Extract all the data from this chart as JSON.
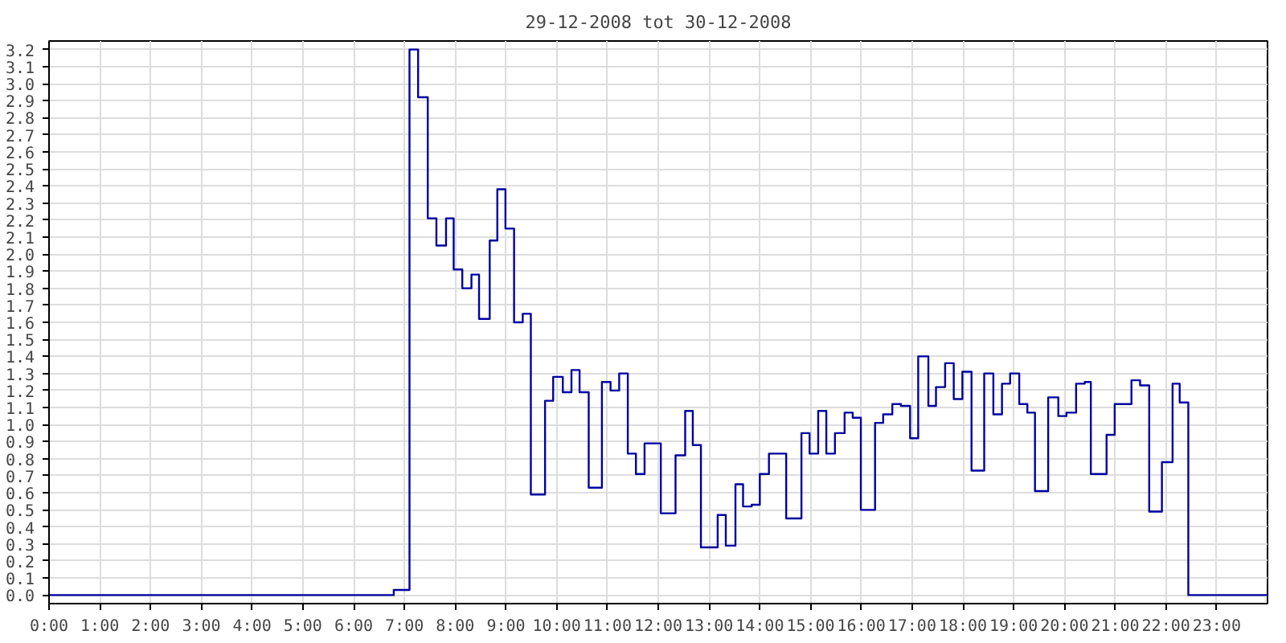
{
  "chart_data": {
    "type": "step",
    "title": "29-12-2008 tot 30-12-2008",
    "x": [
      0,
      6.79,
      7.1,
      7.27,
      7.46,
      7.63,
      7.82,
      7.97,
      8.14,
      8.32,
      8.47,
      8.68,
      8.83,
      8.99,
      9.16,
      9.33,
      9.49,
      9.77,
      9.93,
      10.12,
      10.29,
      10.45,
      10.63,
      10.89,
      11.06,
      11.23,
      11.4,
      11.56,
      11.73,
      12.05,
      12.34,
      12.53,
      12.68,
      12.84,
      13.17,
      13.33,
      13.52,
      13.67,
      13.84,
      14.0,
      14.18,
      14.52,
      14.82,
      14.98,
      15.15,
      15.31,
      15.48,
      15.67,
      15.83,
      15.99,
      16.27,
      16.43,
      16.61,
      16.78,
      16.96,
      17.12,
      17.32,
      17.47,
      17.65,
      17.82,
      17.99,
      18.17,
      18.42,
      18.6,
      18.77,
      18.93,
      19.11,
      19.27,
      19.42,
      19.68,
      19.88,
      20.04,
      20.23,
      20.4,
      20.52,
      20.83,
      20.99,
      21.32,
      21.49,
      21.67,
      21.92,
      22.13,
      22.27,
      22.44,
      24
    ],
    "series": [
      {
        "color": "#0000a0",
        "values": [
          0,
          0.03,
          3.2,
          2.92,
          2.21,
          2.05,
          2.21,
          1.91,
          1.8,
          1.88,
          1.62,
          2.08,
          2.38,
          2.15,
          1.6,
          1.65,
          0.59,
          1.14,
          1.28,
          1.19,
          1.32,
          1.19,
          0.63,
          1.25,
          1.2,
          1.3,
          0.83,
          0.71,
          0.89,
          0.48,
          0.82,
          1.08,
          0.88,
          0.28,
          0.47,
          0.29,
          0.65,
          0.52,
          0.53,
          0.71,
          0.83,
          0.45,
          0.95,
          0.83,
          1.08,
          0.83,
          0.95,
          1.07,
          1.04,
          0.5,
          1.01,
          1.06,
          1.12,
          1.11,
          0.92,
          1.4,
          1.11,
          1.22,
          1.36,
          1.15,
          1.31,
          0.73,
          1.3,
          1.06,
          1.24,
          1.3,
          1.12,
          1.07,
          0.61,
          1.16,
          1.05,
          1.07,
          1.24,
          1.25,
          0.71,
          0.94,
          1.12,
          1.26,
          1.23,
          0.49,
          0.78,
          1.24,
          1.13,
          0,
          0
        ]
      }
    ],
    "xlim": [
      0,
      24
    ],
    "xticks": [
      {
        "value": 0,
        "label": "0:00"
      },
      {
        "value": 1,
        "label": "1:00"
      },
      {
        "value": 2,
        "label": "2:00"
      },
      {
        "value": 3,
        "label": "3:00"
      },
      {
        "value": 4,
        "label": "4:00"
      },
      {
        "value": 5,
        "label": "5:00"
      },
      {
        "value": 6,
        "label": "6:00"
      },
      {
        "value": 7,
        "label": "7:00"
      },
      {
        "value": 8,
        "label": "8:00"
      },
      {
        "value": 9,
        "label": "9:00"
      },
      {
        "value": 10,
        "label": "10:00"
      },
      {
        "value": 11,
        "label": "11:00"
      },
      {
        "value": 12,
        "label": "12:00"
      },
      {
        "value": 13,
        "label": "13:00"
      },
      {
        "value": 14,
        "label": "14:00"
      },
      {
        "value": 15,
        "label": "15:00"
      },
      {
        "value": 16,
        "label": "16:00"
      },
      {
        "value": 17,
        "label": "17:00"
      },
      {
        "value": 18,
        "label": "18:00"
      },
      {
        "value": 19,
        "label": "19:00"
      },
      {
        "value": 20,
        "label": "20:00"
      },
      {
        "value": 21,
        "label": "21:00"
      },
      {
        "value": 22,
        "label": "22:00"
      },
      {
        "value": 23,
        "label": "23:00"
      }
    ],
    "ylim": [
      -0.05,
      3.25
    ],
    "yticks": [
      {
        "value": 0,
        "label": "0.0"
      },
      0.1,
      0.2,
      0.3,
      0.4,
      0.5,
      0.6,
      0.7,
      0.8,
      0.9,
      {
        "value": 1,
        "label": "1.0"
      },
      1.1,
      1.2,
      1.3,
      1.4,
      1.5,
      1.6,
      1.7,
      1.8,
      1.9,
      {
        "value": 2,
        "label": "2.0"
      },
      2.1,
      2.2,
      2.3,
      2.4,
      2.5,
      2.6,
      2.7,
      2.8,
      2.9,
      {
        "value": 3,
        "label": "3.0"
      },
      3.1,
      3.2
    ],
    "grid": true,
    "line_style": "solid"
  }
}
